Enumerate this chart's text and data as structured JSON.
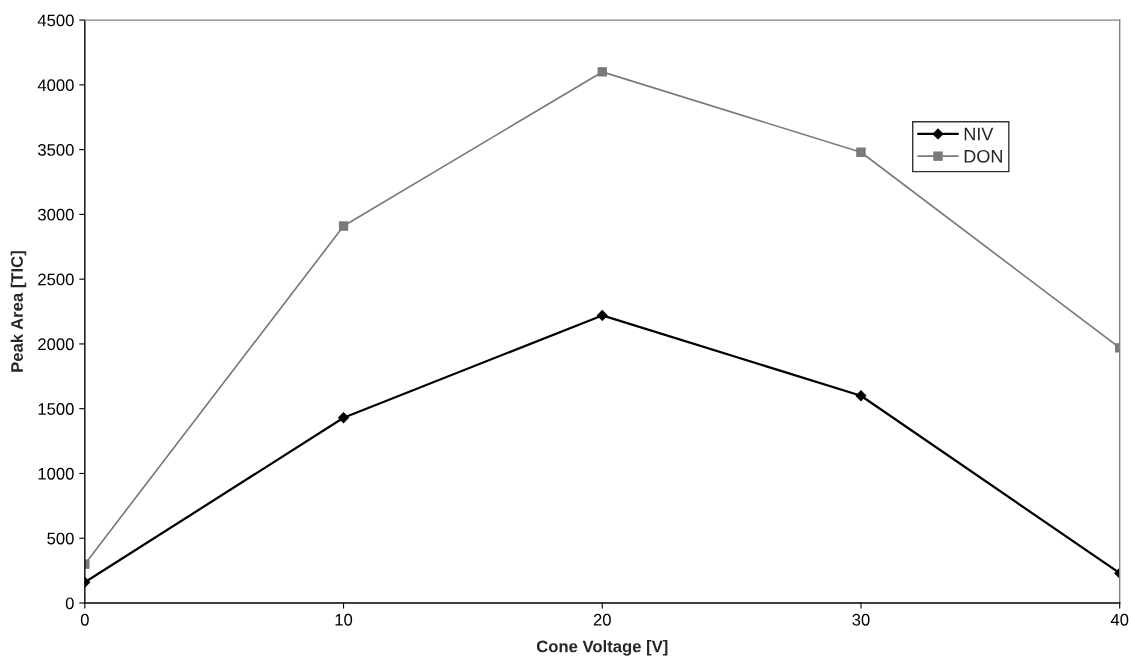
{
  "chart_data": {
    "type": "line",
    "xlabel": "Cone Voltage [V]",
    "ylabel": "Peak Area [TIC]",
    "x": [
      0,
      10,
      20,
      30,
      40
    ],
    "series": [
      {
        "name": "NIV",
        "color": "#000000",
        "marker": "diamond",
        "values": [
          160,
          1430,
          2220,
          1600,
          230
        ]
      },
      {
        "name": "DON",
        "color": "#7a7a7a",
        "marker": "square",
        "values": [
          300,
          2910,
          4100,
          3480,
          1970
        ]
      }
    ],
    "xlim": [
      0,
      40
    ],
    "xticks": [
      0,
      10,
      20,
      30,
      40
    ],
    "ylim": [
      0,
      4500
    ],
    "yticks": [
      0,
      500,
      1000,
      1500,
      2000,
      2500,
      3000,
      3500,
      4000,
      4500
    ],
    "grid": false,
    "legend": "top right",
    "line_style": "solid"
  }
}
